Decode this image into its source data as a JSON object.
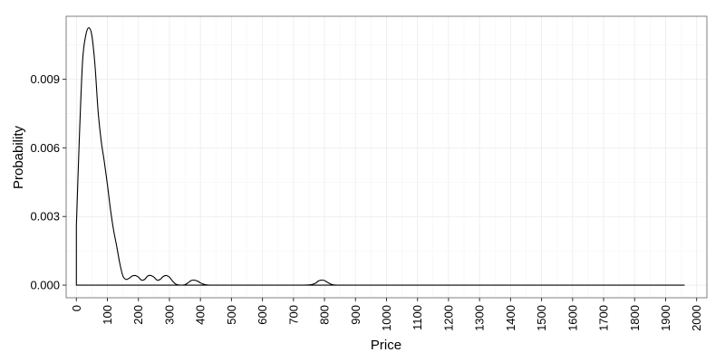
{
  "chart_data": {
    "type": "line",
    "chart_kind": "density",
    "title": "",
    "xlabel": "Price",
    "ylabel": "Probability",
    "xlim": [
      -33,
      2033
    ],
    "ylim": [
      -0.00055,
      0.01175
    ],
    "x_ticks": [
      0,
      100,
      200,
      300,
      400,
      500,
      600,
      700,
      800,
      900,
      1000,
      1100,
      1200,
      1300,
      1400,
      1500,
      1600,
      1700,
      1800,
      1900,
      2000
    ],
    "x_tick_labels": [
      "0",
      "100",
      "200",
      "300",
      "400",
      "500",
      "600",
      "700",
      "800",
      "900",
      "1000",
      "1100",
      "1200",
      "1300",
      "1400",
      "1500",
      "1600",
      "1700",
      "1800",
      "1900",
      "2000"
    ],
    "y_ticks": [
      0,
      0.003,
      0.006,
      0.009
    ],
    "y_tick_labels": [
      "0.000",
      "0.003",
      "0.006",
      "0.009"
    ],
    "grid": true,
    "line_color": "#000000",
    "grid_color": "#ebebeb",
    "panel_border_color": "#7f7f7f",
    "series": [
      {
        "name": "density",
        "x": [
          0,
          0,
          10,
          20,
          30,
          40,
          50,
          60,
          70,
          80,
          90,
          100,
          110,
          120,
          130,
          140,
          150,
          160,
          170,
          180,
          190,
          200,
          210,
          220,
          230,
          240,
          250,
          260,
          270,
          280,
          290,
          300,
          310,
          320,
          330,
          340,
          350,
          360,
          370,
          380,
          390,
          400,
          410,
          420,
          430,
          440,
          450,
          500,
          600,
          700,
          750,
          770,
          780,
          790,
          800,
          810,
          820,
          830,
          850,
          900,
          1000,
          1500,
          1960,
          1960
        ],
        "y": [
          0,
          0.0026,
          0.0066,
          0.0098,
          0.0109,
          0.01125,
          0.0109,
          0.0096,
          0.0076,
          0.0063,
          0.0054,
          0.0044,
          0.0033,
          0.0024,
          0.0017,
          0.00095,
          0.0004,
          0.00025,
          0.0003,
          0.0004,
          0.00042,
          0.00035,
          0.00022,
          0.00025,
          0.0004,
          0.00042,
          0.00035,
          0.00022,
          0.00025,
          0.00038,
          0.00042,
          0.00035,
          0.00018,
          5e-05,
          1e-05,
          0,
          2e-05,
          0.0001,
          0.0002,
          0.00022,
          0.00018,
          0.0001,
          4e-05,
          1e-05,
          0,
          0,
          0,
          0,
          0,
          0,
          1e-05,
          8e-05,
          0.00018,
          0.00022,
          0.0002,
          0.00012,
          5e-05,
          1e-05,
          0,
          0,
          0,
          0,
          0,
          0
        ]
      }
    ]
  }
}
